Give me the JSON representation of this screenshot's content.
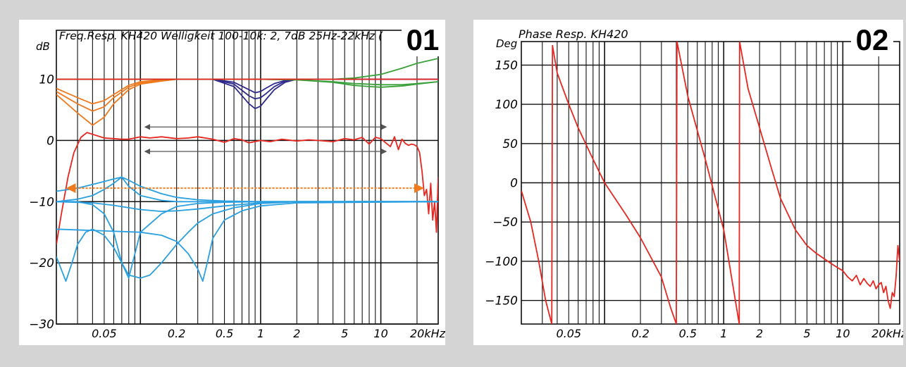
{
  "chart_data": [
    {
      "type": "line",
      "badge": "01",
      "title": "Freq.Resp. KH420 Welligkeit 100-10k: 2, 7dB 25Hz-22kHz (",
      "ylabel": "dB",
      "xscale": "log",
      "xlim": [
        0.02,
        30
      ],
      "ylim": [
        -30,
        18
      ],
      "x_ticks": [
        {
          "v": 0.05,
          "label": "0.05"
        },
        {
          "v": 0.2,
          "label": "0.2"
        },
        {
          "v": 0.5,
          "label": "0.5"
        },
        {
          "v": 1,
          "label": "1"
        },
        {
          "v": 2,
          "label": "2"
        },
        {
          "v": 5,
          "label": "5"
        },
        {
          "v": 10,
          "label": "10"
        },
        {
          "v": 20,
          "label": "20kHz"
        }
      ],
      "y_ticks": [
        {
          "v": 10,
          "label": "10"
        },
        {
          "v": 0,
          "label": "0"
        },
        {
          "v": -10,
          "label": "-10"
        },
        {
          "v": -20,
          "label": "-20"
        },
        {
          "v": -30,
          "label": "-30"
        }
      ],
      "grid": true,
      "series": [
        {
          "color": "#e8261f",
          "x": [
            0.02,
            0.022,
            0.025,
            0.028,
            0.032,
            0.036,
            0.04,
            0.05,
            0.06,
            0.07,
            0.08,
            0.1,
            0.12,
            0.15,
            0.2,
            0.25,
            0.3,
            0.4,
            0.5,
            0.6,
            0.7,
            0.8,
            1,
            1.2,
            1.5,
            2,
            2.5,
            3,
            4,
            5,
            6,
            7,
            8,
            9,
            10,
            11,
            12,
            13,
            14,
            15,
            16,
            17,
            18,
            19,
            20,
            21,
            22,
            23,
            24,
            25,
            26,
            27,
            28,
            29,
            30
          ],
          "y": [
            -17,
            -12,
            -6,
            -2,
            0.5,
            1.3,
            1.0,
            0.4,
            0.3,
            0.2,
            0.2,
            0.6,
            0.4,
            0.6,
            0.3,
            0.4,
            0.6,
            0.2,
            -0.3,
            0.3,
            0.1,
            -0.4,
            0.0,
            -0.2,
            0.2,
            -0.1,
            0.1,
            0.0,
            -0.2,
            0.3,
            0.1,
            0.5,
            -0.6,
            0.5,
            0.3,
            -0.4,
            -1.0,
            0.6,
            -1.5,
            0.2,
            -0.5,
            -0.8,
            -0.6,
            -0.7,
            -1.0,
            -2.0,
            -5.0,
            -9.0,
            -8.0,
            -12.0,
            -7.0,
            -13.0,
            -10.0,
            -15.0,
            -6.0
          ]
        },
        {
          "color": "#f07a1e",
          "x": [
            0.02,
            0.03,
            0.04,
            0.05,
            0.06,
            0.08,
            0.1,
            0.15,
            0.2,
            0.3,
            30
          ],
          "y": [
            8.5,
            7.0,
            6.0,
            6.5,
            7.5,
            9.0,
            9.6,
            9.9,
            10,
            10,
            10
          ]
        },
        {
          "color": "#f07a1e",
          "x": [
            0.02,
            0.03,
            0.04,
            0.05,
            0.06,
            0.08,
            0.1,
            0.15,
            0.2,
            0.3,
            30
          ],
          "y": [
            8.0,
            6.0,
            4.8,
            5.5,
            7.0,
            8.7,
            9.4,
            9.8,
            10,
            10,
            10
          ]
        },
        {
          "color": "#f07a1e",
          "x": [
            0.02,
            0.03,
            0.04,
            0.05,
            0.06,
            0.08,
            0.1,
            0.15,
            0.2,
            0.3,
            30
          ],
          "y": [
            7.5,
            4.5,
            2.5,
            3.8,
            6.0,
            8.3,
            9.2,
            9.7,
            10,
            10,
            10
          ]
        },
        {
          "color": "#2e2a8c",
          "x": [
            0.4,
            0.6,
            0.8,
            0.9,
            1.0,
            1.1,
            1.3,
            1.6,
            2,
            30
          ],
          "y": [
            10,
            9.5,
            8.3,
            7.8,
            8.0,
            8.5,
            9.3,
            9.8,
            10,
            10
          ]
        },
        {
          "color": "#2e2a8c",
          "x": [
            0.4,
            0.6,
            0.8,
            0.9,
            1.0,
            1.1,
            1.3,
            1.6,
            2,
            30
          ],
          "y": [
            10,
            9.2,
            7.3,
            6.8,
            7.0,
            7.6,
            8.8,
            9.7,
            10,
            10
          ]
        },
        {
          "color": "#2e2a8c",
          "x": [
            0.4,
            0.6,
            0.8,
            0.9,
            1.0,
            1.1,
            1.3,
            1.6,
            2,
            30
          ],
          "y": [
            10,
            8.8,
            6.0,
            5.2,
            5.6,
            6.6,
            8.3,
            9.5,
            10,
            10
          ]
        },
        {
          "color": "#3aa13a",
          "x": [
            0.02,
            1,
            2,
            4,
            6,
            10,
            15,
            20,
            30
          ],
          "y": [
            10,
            10,
            10,
            10,
            10.2,
            10.8,
            11.8,
            12.6,
            13.4
          ]
        },
        {
          "color": "#3aa13a",
          "x": [
            0.02,
            1,
            2,
            4,
            6,
            8,
            10,
            15,
            20,
            30
          ],
          "y": [
            10,
            10,
            9.9,
            9.5,
            9.0,
            8.8,
            8.7,
            8.9,
            9.2,
            9.6
          ]
        },
        {
          "color": "#3aa13a",
          "x": [
            0.02,
            1,
            2,
            4,
            6,
            10,
            15,
            20,
            30
          ],
          "y": [
            10,
            10,
            9.9,
            9.6,
            9.3,
            9.1,
            9.1,
            9.3,
            9.6
          ]
        },
        {
          "color": "#e8261f",
          "x": [
            0.02,
            10,
            20,
            30
          ],
          "y": [
            10,
            10,
            10,
            10
          ]
        },
        {
          "color": "#2aa0e0",
          "x": [
            0.02,
            0.03,
            0.04,
            0.05,
            0.06,
            0.07,
            0.08,
            0.1,
            0.15,
            0.2,
            0.3,
            0.5,
            1,
            2,
            30
          ],
          "y": [
            -8.3,
            -7.8,
            -7.2,
            -6.7,
            -6.3,
            -6.0,
            -6.5,
            -7.5,
            -8.7,
            -9.3,
            -9.7,
            -9.9,
            -10,
            -10,
            -10
          ]
        },
        {
          "color": "#2aa0e0",
          "x": [
            0.02,
            0.03,
            0.04,
            0.05,
            0.06,
            0.07,
            0.08,
            0.1,
            0.15,
            0.2,
            0.3,
            0.5,
            1,
            2,
            30
          ],
          "y": [
            -10,
            -9.6,
            -9.0,
            -8.0,
            -7.0,
            -6.0,
            -7.5,
            -9.0,
            -9.8,
            -10,
            -10,
            -10,
            -10,
            -10,
            -10
          ]
        },
        {
          "color": "#2aa0e0",
          "x": [
            0.02,
            0.04,
            0.06,
            0.08,
            0.1,
            0.15,
            0.2,
            0.3,
            0.5,
            1,
            2,
            30
          ],
          "y": [
            -10,
            -10.2,
            -10.6,
            -11.0,
            -11.3,
            -11.6,
            -11.5,
            -11.2,
            -10.7,
            -10.2,
            -10,
            -10
          ]
        },
        {
          "color": "#2aa0e0",
          "x": [
            0.02,
            0.025,
            0.03,
            0.04,
            0.05,
            0.06,
            0.07,
            0.08,
            0.1,
            0.15,
            0.2,
            0.3,
            0.5,
            1,
            2,
            30
          ],
          "y": [
            -10,
            -10,
            -10,
            -10.5,
            -12.0,
            -15.0,
            -20.0,
            -22.5,
            -15.0,
            -12.0,
            -10.8,
            -10.3,
            -10.1,
            -10,
            -10,
            -10
          ]
        },
        {
          "color": "#2aa0e0",
          "x": [
            0.02,
            0.024,
            0.027,
            0.03,
            0.035,
            0.04,
            0.05,
            0.06,
            0.07,
            0.08,
            0.1,
            0.12,
            0.15,
            0.2,
            0.25,
            0.3,
            0.4,
            0.6,
            1,
            2,
            30
          ],
          "y": [
            -19.0,
            -23.0,
            -20.0,
            -17.0,
            -15.0,
            -14.5,
            -15.5,
            -17.5,
            -20.0,
            -22.0,
            -22.5,
            -22.0,
            -20.0,
            -17.0,
            -15.0,
            -13.5,
            -12.0,
            -11.0,
            -10.3,
            -10,
            -10
          ]
        },
        {
          "color": "#2aa0e0",
          "x": [
            0.02,
            0.1,
            0.15,
            0.2,
            0.25,
            0.3,
            0.33,
            0.36,
            0.4,
            0.5,
            0.7,
            1,
            2,
            30
          ],
          "y": [
            -14.5,
            -15,
            -15.5,
            -16.5,
            -18.5,
            -21.0,
            -23.0,
            -20.0,
            -16.0,
            -13.0,
            -11.5,
            -10.7,
            -10.2,
            -10
          ]
        }
      ],
      "arrows": [
        {
          "color": "#555555",
          "style": "solid",
          "x": [
            0.11,
            11
          ],
          "y": 2.2
        },
        {
          "color": "#555555",
          "style": "solid",
          "x": [
            0.11,
            11
          ],
          "y": -1.8
        },
        {
          "color": "#f07a1e",
          "style": "dashed",
          "x": [
            0.025,
            22
          ],
          "y": -7.8
        }
      ]
    },
    {
      "type": "line",
      "badge": "02",
      "title": "Phase Resp. KH420",
      "ylabel": "Deg",
      "xscale": "log",
      "xlim": [
        0.02,
        30
      ],
      "ylim": [
        -180,
        180
      ],
      "x_ticks": [
        {
          "v": 0.05,
          "label": "0.05"
        },
        {
          "v": 0.2,
          "label": "0.2"
        },
        {
          "v": 0.5,
          "label": "0.5"
        },
        {
          "v": 1,
          "label": "1"
        },
        {
          "v": 2,
          "label": "2"
        },
        {
          "v": 5,
          "label": "5"
        },
        {
          "v": 10,
          "label": "10"
        },
        {
          "v": 20,
          "label": "20kHz"
        }
      ],
      "y_ticks": [
        {
          "v": 150,
          "label": "150"
        },
        {
          "v": 100,
          "label": "100"
        },
        {
          "v": 50,
          "label": "50"
        },
        {
          "v": 0,
          "label": "0"
        },
        {
          "v": -50,
          "label": "-50"
        },
        {
          "v": -100,
          "label": "-100"
        },
        {
          "v": -150,
          "label": "-150"
        }
      ],
      "grid": true,
      "series": [
        {
          "color": "#e8261f",
          "x": [
            0.02,
            0.024,
            0.028,
            0.032,
            0.036,
            0.0365,
            0.04,
            0.05,
            0.06,
            0.08,
            0.1,
            0.15,
            0.2,
            0.3,
            0.36,
            0.4,
            0.405,
            0.5,
            0.7,
            1.0,
            1.35,
            1.36,
            1.6,
            2.0,
            2.5,
            3.0,
            4.0,
            5.0,
            6.0,
            7.0,
            8.0,
            9.0,
            10.0,
            11.0,
            12.0,
            13.0,
            14.0,
            15.0,
            16.0,
            17.0,
            18.0,
            19.0,
            20.0,
            21.0,
            22.0,
            23.0,
            24.0,
            25.0,
            26.0,
            27.0,
            28.0,
            29.0,
            30.0
          ],
          "y": [
            -10,
            -50,
            -100,
            -150,
            -180,
            175,
            140,
            100,
            70,
            30,
            0,
            -40,
            -70,
            -120,
            -160,
            -180,
            180,
            110,
            30,
            -60,
            -180,
            180,
            120,
            70,
            20,
            -20,
            -60,
            -80,
            -90,
            -97,
            -103,
            -108,
            -112,
            -120,
            -125,
            -118,
            -130,
            -122,
            -128,
            -132,
            -125,
            -135,
            -130,
            -127,
            -140,
            -132,
            -150,
            -160,
            -140,
            -145,
            -120,
            -80,
            -100
          ]
        }
      ],
      "arrows": []
    }
  ]
}
